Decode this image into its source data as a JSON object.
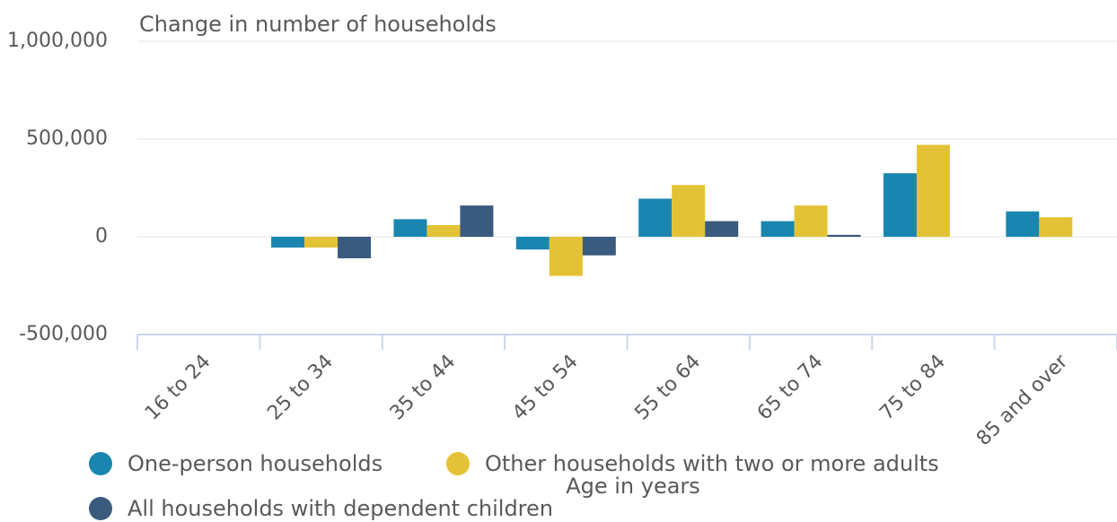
{
  "chart_data": {
    "type": "bar",
    "title": "Change in number of households",
    "x_label": "Age in years",
    "categories": [
      "16 to 24",
      "25 to 34",
      "35 to 44",
      "45 to 54",
      "55 to 64",
      "65 to 74",
      "75 to 84",
      "85 and over"
    ],
    "series": [
      {
        "name": "One-person households",
        "color": "#1a86b0",
        "values": [
          0,
          -55000,
          90000,
          -65000,
          195000,
          80000,
          325000,
          130000
        ]
      },
      {
        "name": "Other households with two or more adults",
        "color": "#e4c236",
        "values": [
          0,
          -55000,
          60000,
          -200000,
          265000,
          160000,
          470000,
          100000
        ]
      },
      {
        "name": "All households with dependent children",
        "color": "#3a5a7e",
        "values": [
          0,
          -110000,
          160000,
          -95000,
          80000,
          10000,
          0,
          0
        ]
      }
    ],
    "ylim": [
      -500000,
      1000000
    ],
    "yticks": [
      {
        "value": -500000,
        "label": "-500,000"
      },
      0,
      {
        "value": 500000,
        "label": "500,000"
      },
      {
        "value": 1000000,
        "label": "1,000,000"
      }
    ],
    "grid": true,
    "legend": "bottom"
  }
}
